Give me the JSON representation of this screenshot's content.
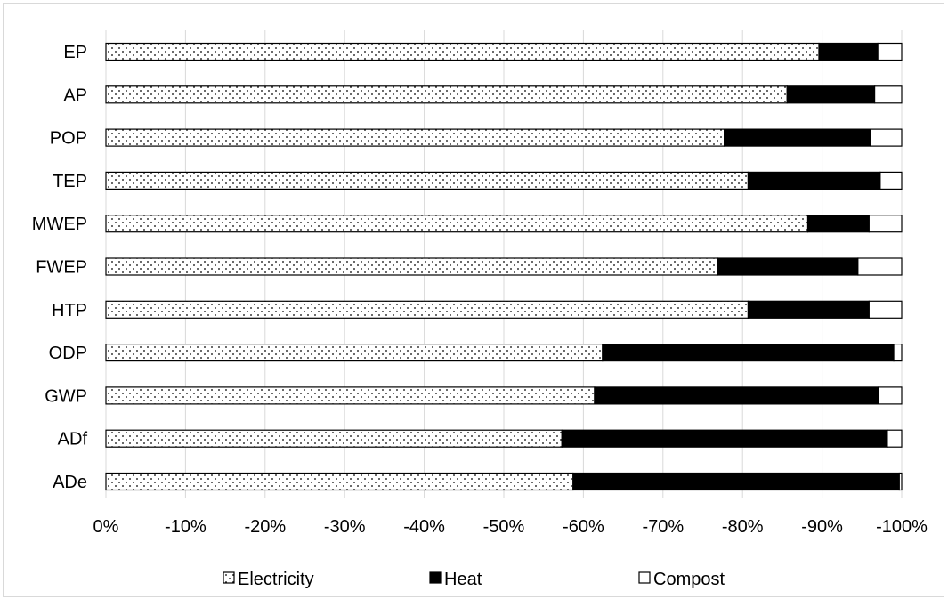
{
  "chart_data": {
    "type": "bar",
    "orientation": "horizontal",
    "stacked": true,
    "title": "",
    "xlabel": "",
    "ylabel": "",
    "categories": [
      "EP",
      "AP",
      "POP",
      "TEP",
      "MWEP",
      "FWEP",
      "HTP",
      "ODP",
      "GWP",
      "ADf",
      "ADe"
    ],
    "x_ticks": [
      "0%",
      "-10%",
      "-20%",
      "-30%",
      "-40%",
      "-50%",
      "-60%",
      "-70%",
      "-80%",
      "-90%",
      "-100%"
    ],
    "xlim": [
      0,
      -100
    ],
    "grid": true,
    "legend_position": "bottom",
    "series": [
      {
        "name": "Electricity",
        "pattern": "dotted",
        "color": "#ffffff",
        "values": [
          -89.6,
          -85.6,
          -77.7,
          -80.7,
          -88.2,
          -76.9,
          -80.7,
          -62.4,
          -61.4,
          -57.3,
          -58.7
        ]
      },
      {
        "name": "Heat",
        "pattern": "solid",
        "color": "#000000",
        "values": [
          -7.4,
          -11.0,
          -18.4,
          -16.6,
          -7.7,
          -17.6,
          -15.2,
          -36.6,
          -35.7,
          -40.9,
          -41.0
        ]
      },
      {
        "name": "Compost",
        "pattern": "none",
        "color": "#ffffff",
        "values": [
          -3.0,
          -3.4,
          -3.9,
          -2.7,
          -4.1,
          -5.5,
          -4.1,
          -1.0,
          -2.9,
          -1.8,
          -0.3
        ]
      }
    ]
  }
}
